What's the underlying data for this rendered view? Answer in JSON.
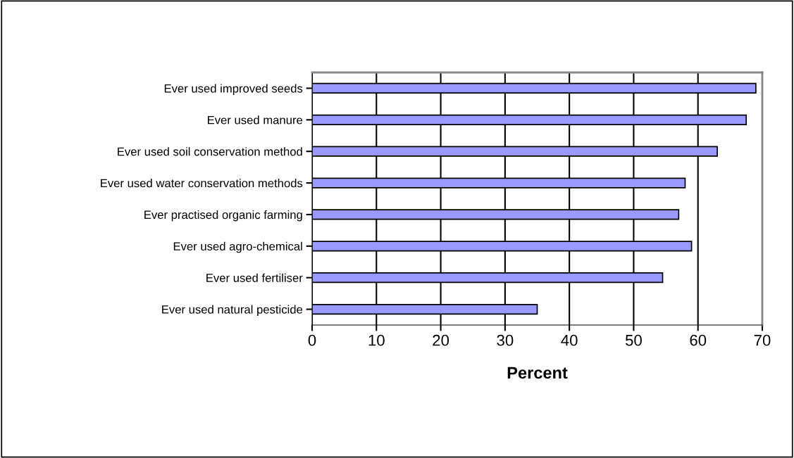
{
  "chart_data": {
    "type": "bar",
    "orientation": "horizontal",
    "xlabel": "Percent",
    "categories": [
      "Ever used improved seeds",
      "Ever used manure",
      "Ever used soil conservation method",
      "Ever used water conservation methods",
      "Ever practised organic farming",
      "Ever used agro-chemical",
      "Ever used fertiliser",
      "Ever used natural pesticide"
    ],
    "values": [
      69,
      67.5,
      63,
      58,
      57,
      59,
      54.5,
      35
    ],
    "color": "#9999ff",
    "xlim": [
      0,
      70
    ],
    "xticks": [
      0,
      10,
      20,
      30,
      40,
      50,
      60,
      70
    ],
    "grid": "x",
    "legend": false
  }
}
